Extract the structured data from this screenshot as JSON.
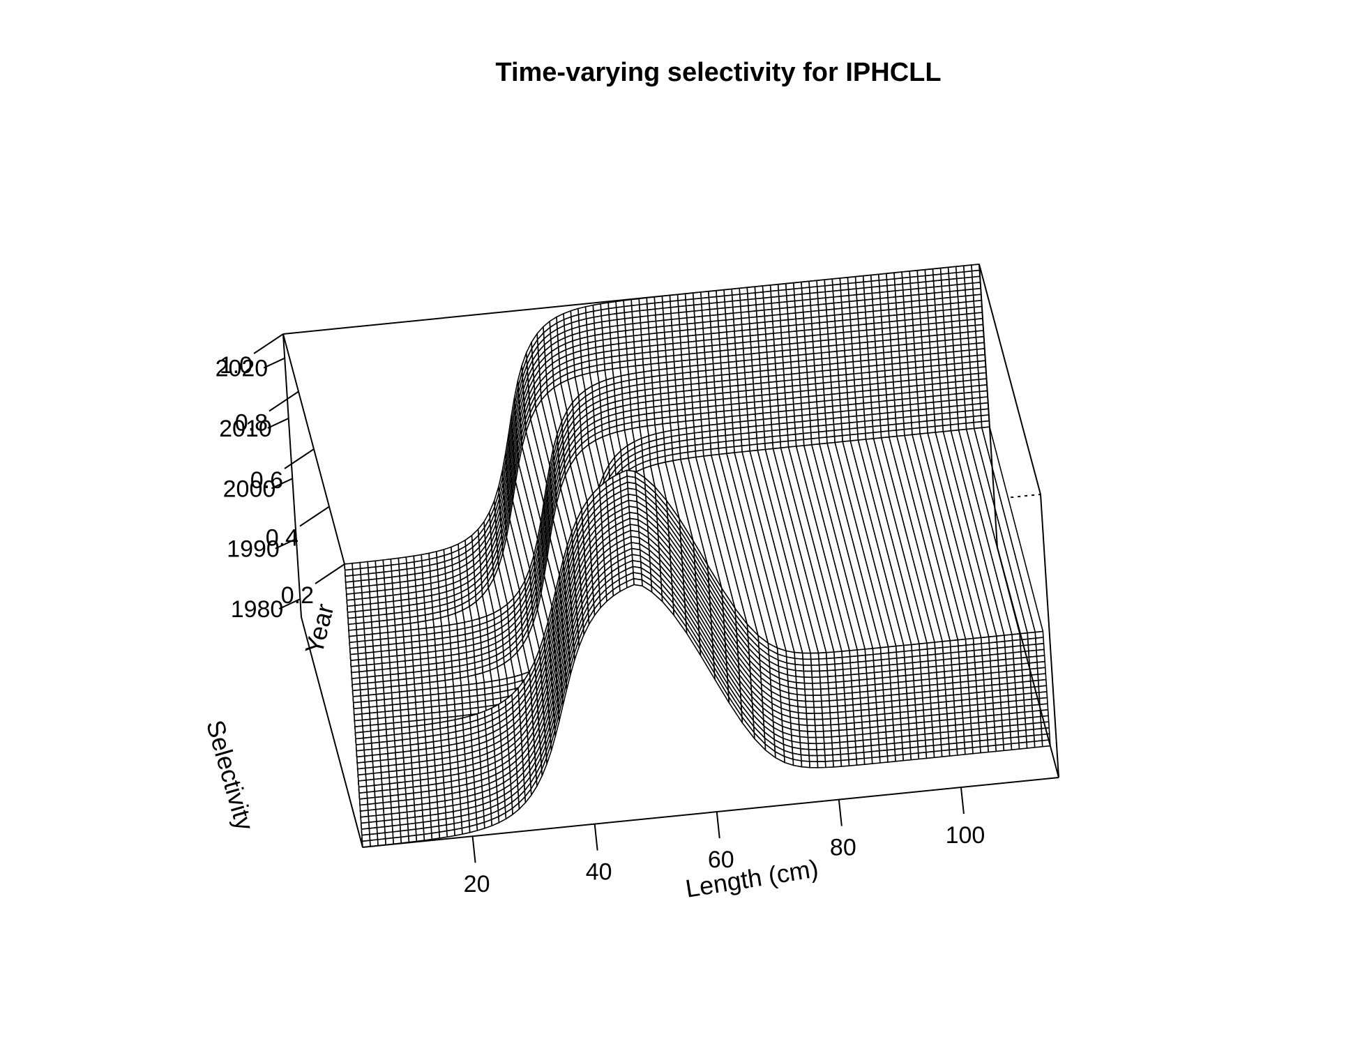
{
  "chart_data": {
    "type": "surface",
    "title": "Time-varying selectivity for IPHCLL",
    "xlabel": "Length (cm)",
    "ylabel": "Year",
    "zlabel": "Selectivity",
    "xlim": [
      2,
      116
    ],
    "ylim": [
      1977,
      2024
    ],
    "zlim": [
      0.2,
      1.0
    ],
    "x_ticks": [
      20,
      40,
      60,
      80,
      100
    ],
    "y_ticks": [
      1980,
      1990,
      2000,
      2010,
      2020
    ],
    "z_ticks": [
      0.2,
      0.4,
      0.6,
      0.8,
      1.0
    ],
    "surface_model": "Double-logistic selectivity: 1980-1996 dome-shaped (ascending L50 about 40 cm, peak near 57 cm, descending to about 0.31 at large lengths); after 1996 asymptotic logistic with L50 about 45 cm in 1997 shifting to about 34 cm by 2013-2024.",
    "periods": [
      {
        "years": [
          1977,
          1996
        ],
        "shape": "dome",
        "ascending_l50": 40,
        "peak_length": 57,
        "min_selectivity": 0.2,
        "plateau_right": 0.31
      },
      {
        "years": [
          1997,
          2002
        ],
        "shape": "asymptotic",
        "ascending_l50": 45,
        "min_selectivity": 0.2,
        "max_selectivity": 1.0
      },
      {
        "years": [
          2003,
          2012
        ],
        "shape": "asymptotic",
        "ascending_l50": 39,
        "min_selectivity": 0.2,
        "max_selectivity": 1.0
      },
      {
        "years": [
          2013,
          2024
        ],
        "shape": "asymptotic",
        "ascending_l50": 34,
        "min_selectivity": 0.2,
        "max_selectivity": 1.0
      }
    ]
  }
}
